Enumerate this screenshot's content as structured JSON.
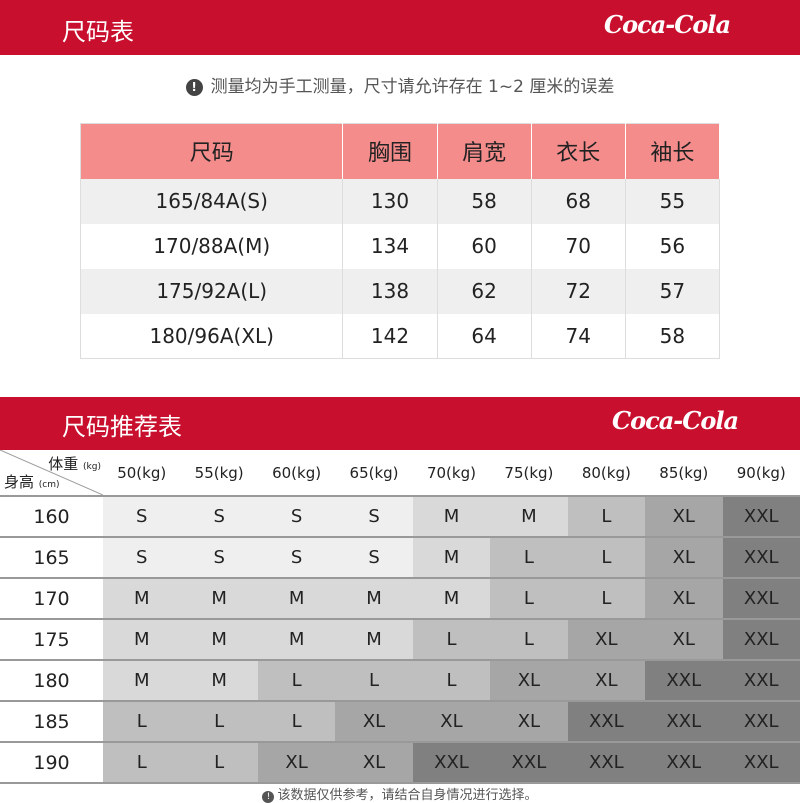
{
  "section1": {
    "title": "尺码表",
    "logo": "Coca-Cola"
  },
  "note": "测量均为手工测量，尺寸请允许存在 1~2 厘米的误差",
  "size_table": {
    "headers": [
      "尺码",
      "胸围",
      "肩宽",
      "衣长",
      "袖长"
    ],
    "rows": [
      [
        "165/84A(S)",
        "130",
        "58",
        "68",
        "55"
      ],
      [
        "170/88A(M)",
        "134",
        "60",
        "70",
        "56"
      ],
      [
        "175/92A(L)",
        "138",
        "62",
        "72",
        "57"
      ],
      [
        "180/96A(XL)",
        "142",
        "64",
        "74",
        "58"
      ]
    ]
  },
  "section2": {
    "title": "尺码推荐表",
    "logo": "Coca-Cola"
  },
  "rec_table": {
    "weight_label": "体重",
    "weight_unit": "(kg)",
    "height_label": "身高",
    "height_unit": "(cm)",
    "weights": [
      "50(kg)",
      "55(kg)",
      "60(kg)",
      "65(kg)",
      "70(kg)",
      "75(kg)",
      "80(kg)",
      "85(kg)",
      "90(kg)"
    ],
    "rows": [
      {
        "height": "160",
        "sizes": [
          "S",
          "S",
          "S",
          "S",
          "M",
          "M",
          "L",
          "XL",
          "XXL"
        ]
      },
      {
        "height": "165",
        "sizes": [
          "S",
          "S",
          "S",
          "S",
          "M",
          "L",
          "L",
          "XL",
          "XXL"
        ]
      },
      {
        "height": "170",
        "sizes": [
          "M",
          "M",
          "M",
          "M",
          "M",
          "L",
          "L",
          "XL",
          "XXL"
        ]
      },
      {
        "height": "175",
        "sizes": [
          "M",
          "M",
          "M",
          "M",
          "L",
          "L",
          "XL",
          "XL",
          "XXL"
        ]
      },
      {
        "height": "180",
        "sizes": [
          "M",
          "M",
          "L",
          "L",
          "L",
          "XL",
          "XL",
          "XXL",
          "XXL"
        ]
      },
      {
        "height": "185",
        "sizes": [
          "L",
          "L",
          "L",
          "XL",
          "XL",
          "XL",
          "XXL",
          "XXL",
          "XXL"
        ]
      },
      {
        "height": "190",
        "sizes": [
          "L",
          "L",
          "XL",
          "XL",
          "XXL",
          "XXL",
          "XXL",
          "XXL",
          "XXL"
        ]
      }
    ],
    "size_colors": {
      "S": "#efefef",
      "M": "#d9d9d9",
      "L": "#bfbfbf",
      "XL": "#a6a6a6",
      "XXL": "#808080"
    }
  },
  "footnote": "该数据仅供参考，请结合自身情况进行选择。",
  "colors": {
    "brand_red": "#c8102e",
    "header_pink": "#f58c8c"
  }
}
